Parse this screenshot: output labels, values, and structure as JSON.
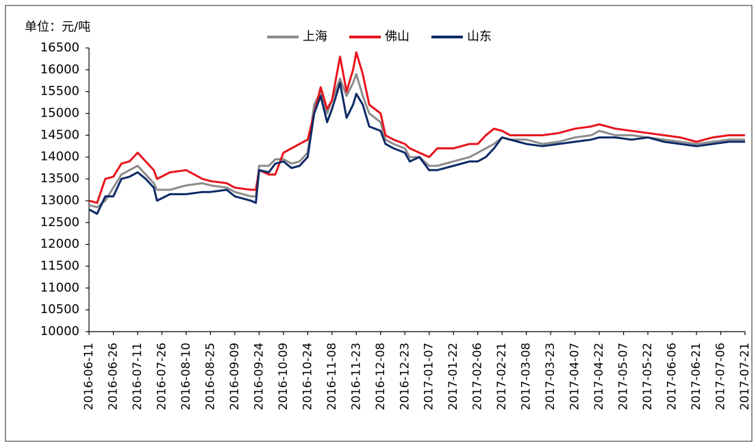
{
  "chart_data": {
    "type": "line",
    "title": "单位：元/吨",
    "x": [
      "2016-06-11",
      "2016-06-16",
      "2016-06-21",
      "2016-06-26",
      "2016-07-01",
      "2016-07-06",
      "2016-07-11",
      "2016-07-16",
      "2016-07-21",
      "2016-07-23",
      "2016-07-31",
      "2016-08-10",
      "2016-08-20",
      "2016-08-25",
      "2016-09-04",
      "2016-09-09",
      "2016-09-19",
      "2016-09-22",
      "2016-09-24",
      "2016-09-30",
      "2016-10-04",
      "2016-10-09",
      "2016-10-14",
      "2016-10-19",
      "2016-10-24",
      "2016-10-28",
      "2016-11-01",
      "2016-11-05",
      "2016-11-08",
      "2016-11-13",
      "2016-11-17",
      "2016-11-21",
      "2016-11-23",
      "2016-11-27",
      "2016-12-01",
      "2016-12-08",
      "2016-12-11",
      "2016-12-16",
      "2016-12-23",
      "2016-12-26",
      "2017-01-01",
      "2017-01-07",
      "2017-01-12",
      "2017-01-22",
      "2017-02-01",
      "2017-02-06",
      "2017-02-11",
      "2017-02-16",
      "2017-02-21",
      "2017-02-26",
      "2017-03-08",
      "2017-03-18",
      "2017-03-28",
      "2017-04-07",
      "2017-04-17",
      "2017-04-22",
      "2017-05-02",
      "2017-05-12",
      "2017-05-22",
      "2017-06-01",
      "2017-06-11",
      "2017-06-21",
      "2017-07-01",
      "2017-07-11",
      "2017-07-21"
    ],
    "series": [
      {
        "name": "上海",
        "color": "#8c8c8c",
        "values": [
          12900,
          12850,
          13000,
          13300,
          13600,
          13700,
          13800,
          13600,
          13400,
          13250,
          13250,
          13350,
          13400,
          13350,
          13300,
          13200,
          13100,
          13100,
          13800,
          13800,
          13950,
          13950,
          13850,
          13900,
          14100,
          15200,
          15500,
          15000,
          15300,
          15800,
          15400,
          15700,
          15900,
          15400,
          15000,
          14800,
          14400,
          14300,
          14200,
          14000,
          14000,
          13800,
          13800,
          13900,
          14000,
          14100,
          14200,
          14300,
          14450,
          14400,
          14400,
          14300,
          14350,
          14450,
          14500,
          14600,
          14500,
          14500,
          14450,
          14400,
          14350,
          14300,
          14350,
          14400,
          14400
        ]
      },
      {
        "name": "佛山",
        "color": "#e8141c",
        "values": [
          13000,
          12950,
          13500,
          13550,
          13850,
          13900,
          14100,
          13900,
          13700,
          13500,
          13650,
          13700,
          13500,
          13450,
          13400,
          13300,
          13250,
          13250,
          13700,
          13600,
          13600,
          14100,
          14200,
          14300,
          14400,
          15000,
          15600,
          15100,
          15300,
          16300,
          15500,
          16000,
          16400,
          15900,
          15200,
          15000,
          14500,
          14400,
          14300,
          14200,
          14100,
          14000,
          14200,
          14200,
          14300,
          14300,
          14500,
          14650,
          14600,
          14500,
          14500,
          14500,
          14550,
          14650,
          14700,
          14750,
          14650,
          14600,
          14550,
          14500,
          14450,
          14350,
          14450,
          14500,
          14500
        ]
      },
      {
        "name": "山东",
        "color": "#0d2a66",
        "values": [
          12800,
          12700,
          13100,
          13100,
          13500,
          13550,
          13650,
          13500,
          13300,
          13000,
          13150,
          13150,
          13200,
          13200,
          13250,
          13100,
          13000,
          12950,
          13700,
          13650,
          13850,
          13900,
          13750,
          13800,
          14000,
          15000,
          15400,
          14800,
          15100,
          15700,
          14900,
          15200,
          15450,
          15200,
          14700,
          14600,
          14300,
          14200,
          14100,
          13900,
          14000,
          13700,
          13700,
          13800,
          13900,
          13900,
          14000,
          14200,
          14450,
          14400,
          14300,
          14250,
          14300,
          14350,
          14400,
          14450,
          14450,
          14400,
          14450,
          14350,
          14300,
          14250,
          14300,
          14350,
          14350
        ]
      }
    ],
    "xlim": [
      "2016-06-11",
      "2017-07-21"
    ],
    "xticks": [
      "2016-06-11",
      "2016-06-26",
      "2016-07-11",
      "2016-07-26",
      "2016-08-10",
      "2016-08-25",
      "2016-09-09",
      "2016-09-24",
      "2016-10-09",
      "2016-10-24",
      "2016-11-08",
      "2016-11-23",
      "2016-12-08",
      "2016-12-23",
      "2017-01-07",
      "2017-01-22",
      "2017-02-06",
      "2017-02-21",
      "2017-03-08",
      "2017-03-23",
      "2017-04-07",
      "2017-04-22",
      "2017-05-07",
      "2017-05-22",
      "2017-06-06",
      "2017-06-21",
      "2017-07-06",
      "2017-07-21"
    ],
    "ylim": [
      10000,
      16500
    ],
    "yticks": [
      10000,
      10500,
      11000,
      11500,
      12000,
      12500,
      13000,
      13500,
      14000,
      14500,
      15000,
      15500,
      16000,
      16500
    ],
    "grid": false,
    "legend": "top"
  }
}
